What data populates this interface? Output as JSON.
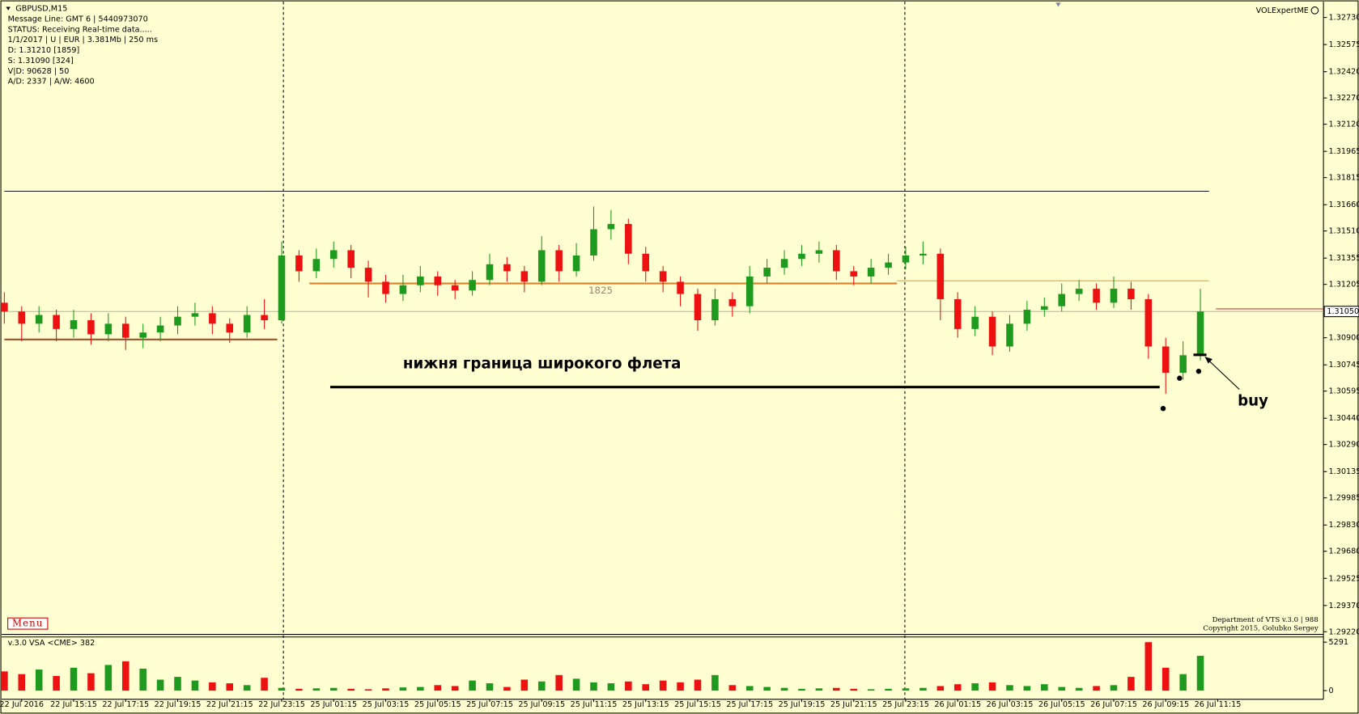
{
  "chart_data": {
    "type": "candlestick",
    "title": "GBPUSD,M15",
    "info_lines": [
      "Message Line: GMT 6 | 5440973070",
      "STATUS:  Receiving Real-time data.....",
      "1/1/2017 | U | EUR | 3.381Mb | 250 ms",
      "D: 1.31210  [1859]",
      "S: 1.31090  [324]",
      "V|D: 90628 | 50",
      "A/D: 2337 | A/W: 4600"
    ],
    "expert_name": "VOLExpertME",
    "menu_label": "Menu",
    "footer_lines": [
      "Department of VTS  v.3.0 | 988",
      "Copyright 2015, Golubko Sergey"
    ],
    "volume_title": "v.3.0 VSA <CME> 382",
    "annotations": [
      "нижня граница широкого флета",
      "buy",
      "1825"
    ],
    "categories": [
      null,
      "22 Jul 2016",
      null,
      null,
      "22 Jul 15:15",
      null,
      null,
      "22 Jul 17:15",
      null,
      null,
      "22 Jul 19:15",
      null,
      null,
      "22 Jul 21:15",
      null,
      null,
      "22 Jul 23:15",
      null,
      null,
      "25 Jul 01:15",
      null,
      null,
      "25 Jul 03:15",
      null,
      null,
      "25 Jul 05:15",
      null,
      null,
      "25 Jul 07:15",
      null,
      null,
      "25 Jul 09:15",
      null,
      null,
      "25 Jul 11:15",
      null,
      null,
      "25 Jul 13:15",
      null,
      null,
      "25 Jul 15:15",
      null,
      null,
      "25 Jul 17:15",
      null,
      null,
      "25 Jul 19:15",
      null,
      null,
      "25 Jul 21:15",
      null,
      null,
      "25 Jul 23:15",
      null,
      null,
      "26 Jul 01:15",
      null,
      null,
      "26 Jul 03:15",
      null,
      null,
      "26 Jul 05:15",
      null,
      null,
      "26 Jul 07:15",
      null,
      null,
      "26 Jul 09:15",
      null,
      null,
      "26 Jul 11:15",
      null
    ],
    "candles": [
      [
        1.311,
        1.3116,
        1.3098,
        1.3105
      ],
      [
        1.3105,
        1.3108,
        1.3088,
        1.3098
      ],
      [
        1.3098,
        1.3108,
        1.3093,
        1.3103
      ],
      [
        1.3103,
        1.3106,
        1.3088,
        1.3095
      ],
      [
        1.3095,
        1.3106,
        1.309,
        1.31
      ],
      [
        1.31,
        1.3104,
        1.3086,
        1.3092
      ],
      [
        1.3092,
        1.3104,
        1.3088,
        1.3098
      ],
      [
        1.3098,
        1.3102,
        1.3083,
        1.309
      ],
      [
        1.309,
        1.3098,
        1.3084,
        1.3093
      ],
      [
        1.3093,
        1.3102,
        1.3088,
        1.3097
      ],
      [
        1.3097,
        1.3108,
        1.3092,
        1.3102
      ],
      [
        1.3102,
        1.311,
        1.3097,
        1.3104
      ],
      [
        1.3104,
        1.3108,
        1.3092,
        1.3098
      ],
      [
        1.3098,
        1.3101,
        1.3087,
        1.3093
      ],
      [
        1.3093,
        1.3108,
        1.309,
        1.3103
      ],
      [
        1.3103,
        1.3112,
        1.3095,
        1.31
      ],
      [
        1.31,
        1.3145,
        1.3098,
        1.3137
      ],
      [
        1.3137,
        1.314,
        1.3122,
        1.3128
      ],
      [
        1.3128,
        1.3141,
        1.3124,
        1.3135
      ],
      [
        1.3135,
        1.3145,
        1.313,
        1.314
      ],
      [
        1.314,
        1.3143,
        1.3124,
        1.313
      ],
      [
        1.313,
        1.3134,
        1.3113,
        1.3122
      ],
      [
        1.3122,
        1.3126,
        1.311,
        1.3115
      ],
      [
        1.3115,
        1.3126,
        1.3111,
        1.312
      ],
      [
        1.312,
        1.3131,
        1.3116,
        1.3125
      ],
      [
        1.3125,
        1.3128,
        1.3114,
        1.312
      ],
      [
        1.312,
        1.3123,
        1.3112,
        1.3117
      ],
      [
        1.3117,
        1.3128,
        1.3114,
        1.3123
      ],
      [
        1.3123,
        1.3138,
        1.312,
        1.3132
      ],
      [
        1.3132,
        1.3136,
        1.3122,
        1.3128
      ],
      [
        1.3128,
        1.3131,
        1.3116,
        1.3122
      ],
      [
        1.3122,
        1.3148,
        1.312,
        1.314
      ],
      [
        1.314,
        1.3143,
        1.3122,
        1.3128
      ],
      [
        1.3128,
        1.3144,
        1.3125,
        1.3137
      ],
      [
        1.3137,
        1.3165,
        1.3134,
        1.3152
      ],
      [
        1.3152,
        1.3163,
        1.3146,
        1.3155
      ],
      [
        1.3155,
        1.3158,
        1.3132,
        1.3138
      ],
      [
        1.3138,
        1.3142,
        1.3122,
        1.3128
      ],
      [
        1.3128,
        1.3131,
        1.3116,
        1.3122
      ],
      [
        1.3122,
        1.3125,
        1.3108,
        1.3115
      ],
      [
        1.3115,
        1.3118,
        1.3094,
        1.31
      ],
      [
        1.31,
        1.3118,
        1.3097,
        1.3112
      ],
      [
        1.3112,
        1.3116,
        1.3102,
        1.3108
      ],
      [
        1.3108,
        1.3131,
        1.3104,
        1.3125
      ],
      [
        1.3125,
        1.3135,
        1.3121,
        1.313
      ],
      [
        1.313,
        1.314,
        1.3126,
        1.3135
      ],
      [
        1.3135,
        1.3143,
        1.3131,
        1.3138
      ],
      [
        1.3138,
        1.3145,
        1.3133,
        1.314
      ],
      [
        1.314,
        1.3143,
        1.3123,
        1.3128
      ],
      [
        1.3128,
        1.3131,
        1.312,
        1.3125
      ],
      [
        1.3125,
        1.3135,
        1.3121,
        1.313
      ],
      [
        1.313,
        1.3138,
        1.3126,
        1.3133
      ],
      [
        1.3133,
        1.3142,
        1.3129,
        1.3137
      ],
      [
        1.3137,
        1.3145,
        1.3132,
        1.3138
      ],
      [
        1.3138,
        1.3141,
        1.31,
        1.3112
      ],
      [
        1.3112,
        1.3116,
        1.309,
        1.3095
      ],
      [
        1.3095,
        1.3108,
        1.3091,
        1.3102
      ],
      [
        1.3102,
        1.3105,
        1.308,
        1.3085
      ],
      [
        1.3085,
        1.3103,
        1.3082,
        1.3098
      ],
      [
        1.3098,
        1.3111,
        1.3094,
        1.3106
      ],
      [
        1.3106,
        1.3113,
        1.3102,
        1.3108
      ],
      [
        1.3108,
        1.3121,
        1.3105,
        1.3115
      ],
      [
        1.3115,
        1.3123,
        1.3111,
        1.3118
      ],
      [
        1.3118,
        1.3121,
        1.3106,
        1.311
      ],
      [
        1.311,
        1.3125,
        1.3107,
        1.3118
      ],
      [
        1.3118,
        1.3122,
        1.3106,
        1.3112
      ],
      [
        1.3112,
        1.3115,
        1.3078,
        1.3085
      ],
      [
        1.3085,
        1.309,
        1.3058,
        1.307
      ],
      [
        1.307,
        1.3088,
        1.3066,
        1.308
      ],
      [
        1.308,
        1.3118,
        1.3077,
        1.3105
      ],
      null,
      null
    ],
    "volumes": [
      2100,
      1800,
      2300,
      1600,
      2500,
      1900,
      2800,
      3200,
      2400,
      1200,
      1500,
      1100,
      900,
      800,
      600,
      1400,
      300,
      200,
      250,
      300,
      200,
      150,
      250,
      350,
      400,
      600,
      500,
      1100,
      800,
      400,
      1200,
      1000,
      1700,
      1300,
      900,
      800,
      1000,
      700,
      1100,
      900,
      1200,
      1700,
      600,
      500,
      400,
      300,
      200,
      250,
      300,
      200,
      150,
      200,
      250,
      300,
      500,
      700,
      800,
      900,
      600,
      500,
      700,
      400,
      300,
      500,
      600,
      1500,
      5291,
      2500,
      1800,
      3800,
      null,
      null
    ],
    "up_color": "#1e9b1e",
    "down_color": "#ee1111",
    "ylim": [
      1.29205,
      1.32805
    ],
    "yticks": [
      {
        "value": 1.3273,
        "label": "1.32730"
      },
      {
        "value": 1.32575,
        "label": "1.32575"
      },
      {
        "value": 1.3242,
        "label": "1.32420"
      },
      {
        "value": 1.3227,
        "label": "1.32270"
      },
      {
        "value": 1.3212,
        "label": "1.32120"
      },
      {
        "value": 1.31965,
        "label": "1.31965"
      },
      {
        "value": 1.31815,
        "label": "1.31815"
      },
      {
        "value": 1.3166,
        "label": "1.31660"
      },
      {
        "value": 1.3151,
        "label": "1.31510"
      },
      {
        "value": 1.31355,
        "label": "1.31355"
      },
      {
        "value": 1.31205,
        "label": "1.31205"
      },
      {
        "value": 1.309,
        "label": "1.30900"
      },
      {
        "value": 1.30745,
        "label": "1.30745"
      },
      {
        "value": 1.30595,
        "label": "1.30595"
      },
      {
        "value": 1.3044,
        "label": "1.30440"
      },
      {
        "value": 1.3029,
        "label": "1.30290"
      },
      {
        "value": 1.30135,
        "label": "1.30135"
      },
      {
        "value": 1.29985,
        "label": "1.29985"
      },
      {
        "value": 1.2983,
        "label": "1.29830"
      },
      {
        "value": 1.2968,
        "label": "1.29680"
      },
      {
        "value": 1.29525,
        "label": "1.29525"
      },
      {
        "value": 1.2937,
        "label": "1.29370"
      },
      {
        "value": 1.2922,
        "label": "1.29220"
      }
    ],
    "current_price": {
      "value": 1.3105,
      "label": "1.31050"
    },
    "vlim": [
      0,
      5291
    ],
    "vticks": [
      0,
      5291
    ],
    "levels": [
      {
        "value": 1.31737,
        "color": "#111111"
      },
      {
        "value": 1.3121,
        "color": "#d9822b"
      },
      {
        "value": 1.31225,
        "color": "#f5a623"
      },
      {
        "value": 1.3089,
        "color": "#a0522d"
      },
      {
        "value": 1.30618,
        "color": "#000000"
      },
      {
        "value": 1.31065,
        "color": "#e33333"
      }
    ]
  }
}
